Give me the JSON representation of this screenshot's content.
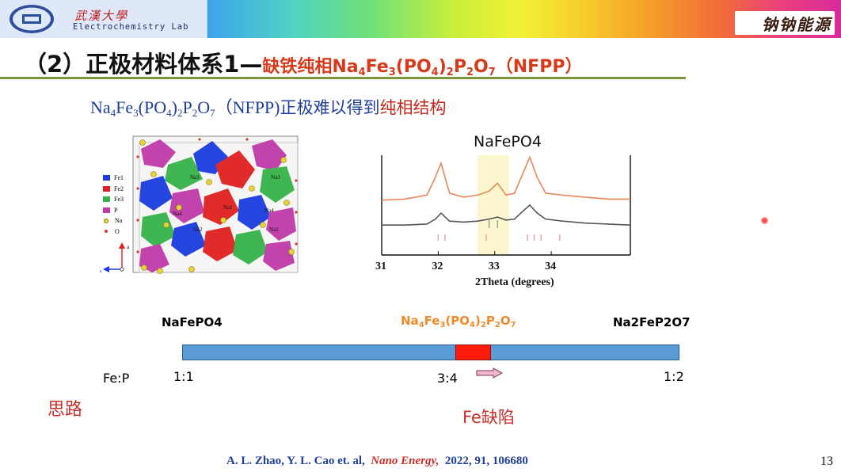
{
  "header": {
    "university_cn": "武漢大學",
    "lab_name": "Electrochemistry Lab",
    "brand": "钠钠能源"
  },
  "slide": {
    "title_main": "（2）正极材料体系1—",
    "title_sub_pre": "缺铁纯相Na",
    "title_sub_parts": [
      "4",
      "Fe",
      "3",
      "(PO",
      "4",
      ")",
      "2",
      "P",
      "2",
      "O",
      "7",
      "（NFPP）"
    ],
    "subtitle_formula": [
      "Na",
      "4",
      "Fe",
      "3",
      "(PO",
      "4",
      ")",
      "2",
      "P",
      "2",
      "O",
      "7"
    ],
    "subtitle_abbr": "（NFPP)",
    "subtitle_mid": "正极难以得到",
    "subtitle_red": "纯相结构",
    "page_number": "13"
  },
  "crystal_legend": [
    {
      "label": "Fe1",
      "color": "#1a3ce0"
    },
    {
      "label": "Fe2",
      "color": "#e02020"
    },
    {
      "label": "Fe3",
      "color": "#36b34a"
    },
    {
      "label": "P",
      "color": "#c03aa8"
    },
    {
      "label": "Na",
      "color": "#e8d23a"
    },
    {
      "label": "O",
      "color": "#d83a2a"
    }
  ],
  "crystal_site_labels": [
    "Na3",
    "Na3",
    "Na4",
    "Na1",
    "Na4",
    "Na2",
    "Na2"
  ],
  "crystal_axes": [
    "a",
    "c"
  ],
  "chart_data": {
    "type": "line",
    "title": "NaFePO4",
    "xlabel": "2Theta (degrees)",
    "ylabel": "",
    "xlim": [
      31,
      35.4
    ],
    "x_ticks": [
      "31",
      "32",
      "33",
      "34"
    ],
    "highlight_range": [
      32.7,
      33.25
    ],
    "series": [
      {
        "color": "#e8865a",
        "x": [
          31.0,
          31.4,
          31.8,
          31.95,
          32.05,
          32.2,
          32.45,
          32.7,
          32.9,
          33.05,
          33.2,
          33.35,
          33.5,
          33.62,
          33.75,
          33.9,
          34.2,
          34.6,
          35.0,
          35.4
        ],
        "y": [
          0.55,
          0.56,
          0.6,
          0.78,
          0.92,
          0.62,
          0.58,
          0.6,
          0.64,
          0.72,
          0.6,
          0.62,
          0.82,
          0.98,
          0.78,
          0.62,
          0.6,
          0.58,
          0.56,
          0.56
        ]
      },
      {
        "color": "#555555",
        "x": [
          31.0,
          31.4,
          31.8,
          31.95,
          32.05,
          32.2,
          32.45,
          32.7,
          32.9,
          33.05,
          33.2,
          33.35,
          33.5,
          33.62,
          33.75,
          33.9,
          34.2,
          34.6,
          35.0,
          35.4
        ],
        "y": [
          0.3,
          0.3,
          0.31,
          0.36,
          0.42,
          0.34,
          0.33,
          0.34,
          0.36,
          0.38,
          0.35,
          0.36,
          0.44,
          0.5,
          0.42,
          0.36,
          0.34,
          0.32,
          0.31,
          0.3
        ]
      }
    ],
    "ref_peaks_red": [
      32.0,
      32.12,
      32.85,
      33.58,
      33.7,
      33.82,
      34.15
    ],
    "ref_peaks_grey": [
      32.9,
      33.05
    ]
  },
  "diagram": {
    "left_compound": "NaFePO4",
    "mid_compound_parts": [
      "Na",
      "4",
      "Fe",
      "3",
      "(PO",
      "4",
      ")",
      "2",
      "P",
      "2",
      "O",
      "7"
    ],
    "right_compound": "Na2FeP2O7",
    "axis_label": "Fe:P",
    "ratio_left": "1:1",
    "ratio_mid": "3:4",
    "ratio_right": "1:2",
    "idea_label": "思路",
    "defect_label": "Fe缺陷",
    "bar_color": "#5b9bd5",
    "marker_color": "#ff1a0a",
    "arrow_color": "#f2b6cc"
  },
  "citation": {
    "authors": "A. L. Zhao, Y. L. Cao et. al,",
    "journal": "Nano Energy,",
    "ref": "2022, 91, 106680"
  }
}
